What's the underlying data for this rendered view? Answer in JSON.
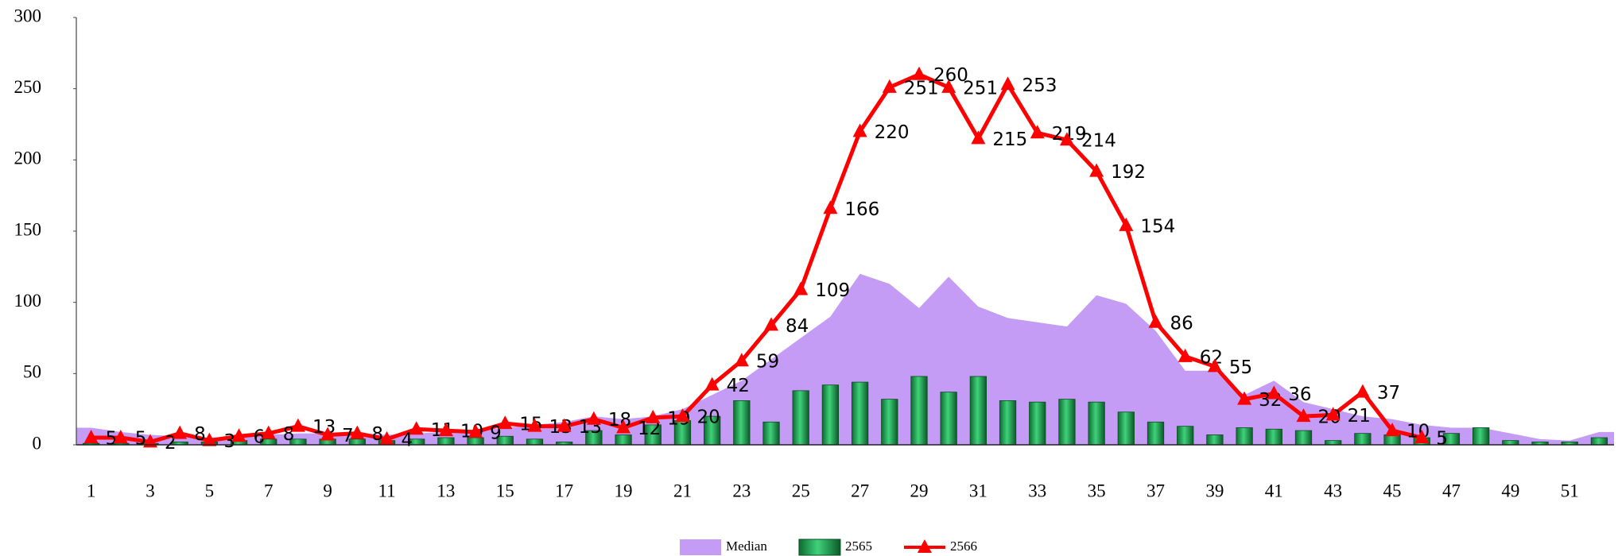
{
  "chart_data": {
    "type": "combo",
    "categories": [
      "1",
      null,
      "3",
      null,
      "5",
      null,
      "7",
      null,
      "9",
      null,
      "11",
      null,
      "13",
      null,
      "15",
      null,
      "17",
      null,
      "19",
      null,
      "21",
      null,
      "23",
      null,
      "25",
      null,
      "27",
      null,
      "29",
      null,
      "31",
      null,
      "33",
      null,
      "35",
      null,
      "37",
      null,
      "39",
      null,
      "41",
      null,
      "43",
      null,
      "45",
      null,
      "47",
      null,
      "49",
      null,
      "51",
      null
    ],
    "ylim": [
      0,
      300
    ],
    "yticks": [
      0,
      50,
      100,
      150,
      200,
      250,
      300
    ],
    "series": [
      {
        "name": "Median",
        "type": "area",
        "color": "#c49cf5",
        "values": [
          12,
          9,
          7,
          6,
          5,
          6,
          7,
          8,
          8,
          8,
          7,
          8,
          9,
          10,
          12,
          14,
          16,
          20,
          18,
          20,
          25,
          35,
          45,
          60,
          75,
          90,
          120,
          113,
          96,
          118,
          97,
          89,
          86,
          83,
          105,
          99,
          80,
          52,
          52,
          35,
          45,
          30,
          25,
          20,
          18,
          14,
          12,
          12,
          8,
          4,
          3,
          9
        ]
      },
      {
        "name": "2565",
        "type": "bar",
        "color": "#1a9e4a",
        "values": [
          1,
          1,
          1,
          2,
          2,
          3,
          4,
          4,
          4,
          4,
          3,
          4,
          5,
          5,
          6,
          4,
          2,
          10,
          7,
          14,
          17,
          20,
          31,
          16,
          38,
          42,
          44,
          32,
          48,
          37,
          48,
          31,
          30,
          32,
          30,
          23,
          16,
          13,
          7,
          12,
          11,
          10,
          3,
          8,
          7,
          5,
          8,
          12,
          3,
          2,
          2,
          5
        ]
      },
      {
        "name": "2566",
        "type": "line",
        "color": "#ff0000",
        "values": [
          5,
          5,
          2,
          8,
          3,
          6,
          8,
          13,
          7,
          8,
          4,
          11,
          10,
          9,
          15,
          13,
          13,
          18,
          12,
          19,
          20,
          42,
          59,
          84,
          109,
          166,
          220,
          251,
          260,
          251,
          215,
          253,
          219,
          214,
          192,
          154,
          86,
          62,
          55,
          32,
          36,
          20,
          21,
          37,
          10,
          5,
          null,
          null,
          null,
          null,
          null,
          null
        ]
      }
    ]
  }
}
